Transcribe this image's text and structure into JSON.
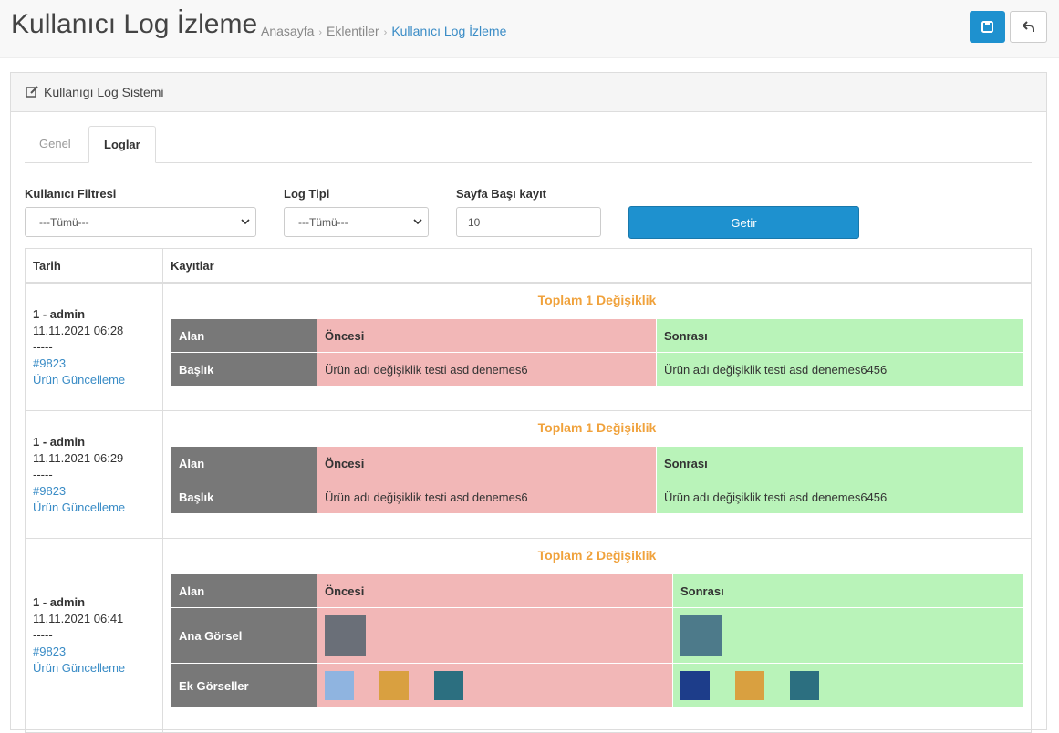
{
  "header": {
    "title": "Kullanıcı Log İzleme",
    "breadcrumb": [
      "Anasayfa",
      "Eklentiler",
      "Kullanıcı Log İzleme"
    ]
  },
  "panel": {
    "title": "Kullanıgı Log Sistemi"
  },
  "tabs": [
    "Genel",
    "Loglar"
  ],
  "filters": [
    {
      "label": "Kullanıcı Filtresi",
      "value": "---Tümü---"
    },
    {
      "label": "Log Tipi",
      "value": "---Tümü---"
    },
    {
      "label": "Sayfa Başı kayıt",
      "value": "10"
    }
  ],
  "button": "Getir",
  "table": {
    "headers": [
      "Tarih",
      "Kayıtlar"
    ],
    "rows": [
      {
        "user": "1 - admin",
        "date": "11.11.2021 06:28",
        "separator": "-----",
        "id": "#9823",
        "action": "Ürün Güncelleme",
        "summary": "Toplam 1 Değişiklik",
        "columns": [
          "Alan",
          "Öncesi",
          "Sonrası"
        ],
        "changes": [
          {
            "field": "Başlık",
            "before": "Ürün adı değişiklik testi asd denemes6",
            "after": "Ürün adı değişiklik testi asd denemes6456"
          }
        ]
      },
      {
        "user": "1 - admin",
        "date": "11.11.2021 06:29",
        "separator": "-----",
        "id": "#9823",
        "action": "Ürün Güncelleme",
        "summary": "Toplam 1 Değişiklik",
        "columns": [
          "Alan",
          "Öncesi",
          "Sonrası"
        ],
        "changes": [
          {
            "field": "Başlık",
            "before": "Ürün adı değişiklik testi asd denemes6",
            "after": "Ürün adı değişiklik testi asd denemes6456"
          }
        ]
      },
      {
        "user": "1 - admin",
        "date": "11.11.2021 06:41",
        "separator": "-----",
        "id": "#9823",
        "action": "Ürün Güncelleme",
        "summary": "Toplam 2 Değişiklik",
        "columns": [
          "Alan",
          "Öncesi",
          "Sonrası"
        ],
        "changes": [
          {
            "field": "Ana Görsel"
          },
          {
            "field": "Ek Görseller"
          }
        ]
      }
    ]
  }
}
